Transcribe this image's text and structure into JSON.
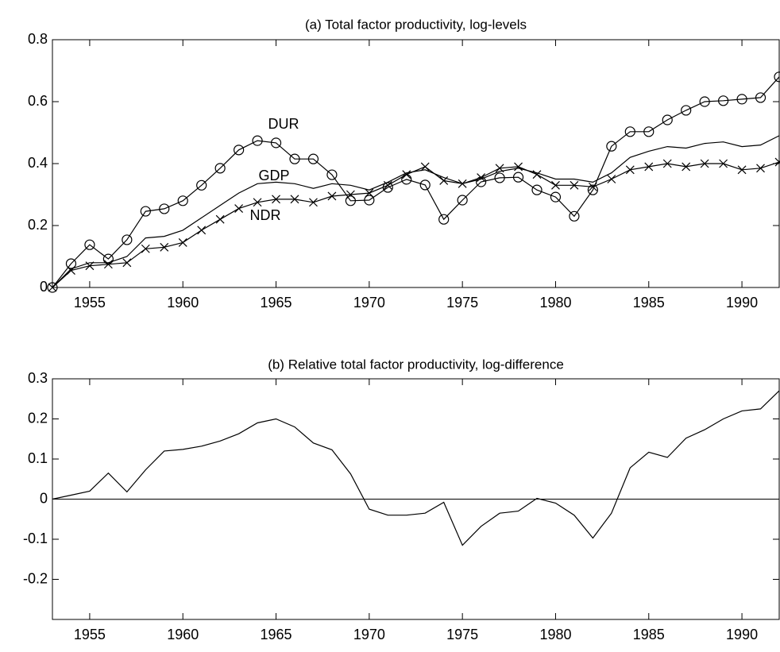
{
  "chart_data": [
    {
      "type": "line",
      "title": "(a) Total factor productivity, log-levels",
      "x": [
        1953,
        1954,
        1955,
        1956,
        1957,
        1958,
        1959,
        1960,
        1961,
        1962,
        1963,
        1964,
        1965,
        1966,
        1967,
        1968,
        1969,
        1970,
        1971,
        1972,
        1973,
        1974,
        1975,
        1976,
        1977,
        1978,
        1979,
        1980,
        1981,
        1982,
        1983,
        1984,
        1985,
        1986,
        1987,
        1988,
        1989,
        1990,
        1991,
        1992
      ],
      "series": [
        {
          "name": "DUR",
          "color": "#000000",
          "marker": "circle",
          "values": [
            0,
            0.077,
            0.138,
            0.092,
            0.154,
            0.246,
            0.254,
            0.28,
            0.33,
            0.385,
            0.444,
            0.474,
            0.467,
            0.415,
            0.415,
            0.364,
            0.28,
            0.282,
            0.323,
            0.349,
            0.331,
            0.22,
            0.282,
            0.341,
            0.354,
            0.356,
            0.315,
            0.292,
            0.23,
            0.315,
            0.456,
            0.503,
            0.503,
            0.541,
            0.572,
            0.6,
            0.603,
            0.608,
            0.613,
            0.68
          ]
        },
        {
          "name": "GDP",
          "color": "#000000",
          "marker": "none",
          "values": [
            0,
            0.06,
            0.08,
            0.08,
            0.1,
            0.16,
            0.165,
            0.185,
            0.225,
            0.265,
            0.305,
            0.335,
            0.34,
            0.335,
            0.32,
            0.335,
            0.33,
            0.315,
            0.34,
            0.37,
            0.38,
            0.355,
            0.335,
            0.35,
            0.375,
            0.385,
            0.37,
            0.35,
            0.35,
            0.34,
            0.37,
            0.42,
            0.44,
            0.455,
            0.45,
            0.465,
            0.47,
            0.455,
            0.46,
            0.49
          ]
        },
        {
          "name": "NDR",
          "color": "#000000",
          "marker": "x",
          "values": [
            0,
            0.055,
            0.07,
            0.075,
            0.08,
            0.125,
            0.13,
            0.145,
            0.185,
            0.22,
            0.255,
            0.275,
            0.285,
            0.285,
            0.275,
            0.295,
            0.3,
            0.305,
            0.33,
            0.365,
            0.39,
            0.345,
            0.335,
            0.355,
            0.385,
            0.39,
            0.365,
            0.33,
            0.33,
            0.325,
            0.35,
            0.38,
            0.39,
            0.4,
            0.39,
            0.4,
            0.4,
            0.38,
            0.385,
            0.405
          ]
        }
      ],
      "xlim": [
        1953,
        1992
      ],
      "xticks": [
        1955,
        1960,
        1965,
        1970,
        1975,
        1980,
        1985,
        1990
      ],
      "ylim": [
        0,
        0.8
      ],
      "yticks": [
        0,
        0.2,
        0.4,
        0.6,
        0.8
      ]
    },
    {
      "type": "line",
      "title": "(b) Relative total factor productivity, log-difference",
      "x": [
        1953,
        1954,
        1955,
        1956,
        1957,
        1958,
        1959,
        1960,
        1961,
        1962,
        1963,
        1964,
        1965,
        1966,
        1967,
        1968,
        1969,
        1970,
        1971,
        1972,
        1973,
        1974,
        1975,
        1976,
        1977,
        1978,
        1979,
        1980,
        1981,
        1982,
        1983,
        1984,
        1985,
        1986,
        1987,
        1988,
        1989,
        1990,
        1991,
        1992
      ],
      "values": [
        0,
        0.01,
        0.02,
        0.065,
        0.018,
        0.073,
        0.12,
        0.124,
        0.132,
        0.145,
        0.163,
        0.19,
        0.2,
        0.18,
        0.14,
        0.123,
        0.063,
        -0.025,
        -0.04,
        -0.04,
        -0.035,
        -0.008,
        -0.115,
        -0.068,
        -0.035,
        -0.03,
        0.002,
        -0.01,
        -0.04,
        -0.097,
        -0.035,
        0.078,
        0.117,
        0.104,
        0.152,
        0.173,
        0.2,
        0.22,
        0.225,
        0.27
      ],
      "color": "#000000",
      "hline": 0,
      "xlim": [
        1953,
        1992
      ],
      "xticks": [
        1955,
        1960,
        1965,
        1970,
        1975,
        1980,
        1985,
        1990
      ],
      "ylim": [
        -0.3,
        0.3
      ],
      "yticks": [
        -0.2,
        -0.1,
        0,
        0.1,
        0.2,
        0.3
      ]
    }
  ]
}
